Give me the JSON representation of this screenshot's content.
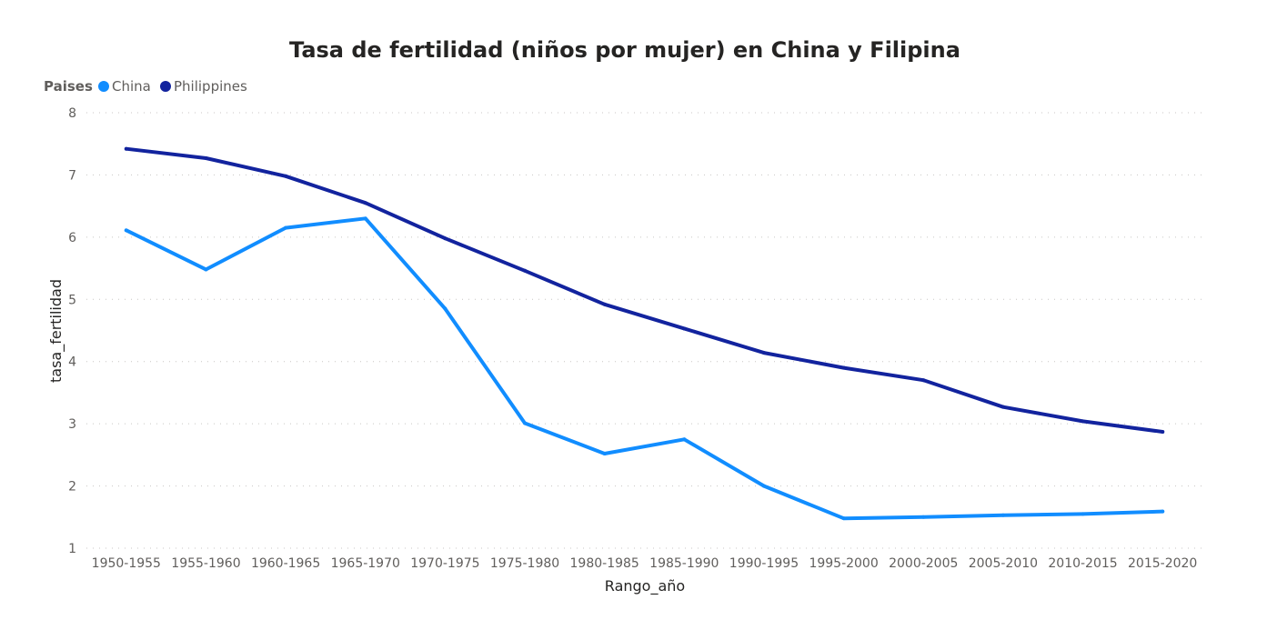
{
  "chart_data": {
    "type": "line",
    "title": "Tasa de fertilidad (niños por mujer) en China y Filipina",
    "legend_title": "Paises",
    "legend_position": "top-left",
    "xlabel": "Rango_año",
    "ylabel": "tasa_fertilidad",
    "ylim": [
      1,
      8
    ],
    "yticks": [
      1,
      2,
      3,
      4,
      5,
      6,
      7,
      8
    ],
    "grid": true,
    "categories": [
      "1950-1955",
      "1955-1960",
      "1960-1965",
      "1965-1970",
      "1970-1975",
      "1975-1980",
      "1980-1985",
      "1985-1990",
      "1990-1995",
      "1995-2000",
      "2000-2005",
      "2005-2010",
      "2010-2015",
      "2015-2020"
    ],
    "series": [
      {
        "name": "China",
        "color": "#118dff",
        "values": [
          6.11,
          5.48,
          6.15,
          6.3,
          4.85,
          3.01,
          2.52,
          2.75,
          2.0,
          1.48,
          1.5,
          1.53,
          1.55,
          1.59
        ]
      },
      {
        "name": "Philippines",
        "color": "#12239e",
        "values": [
          7.42,
          7.27,
          6.98,
          6.55,
          5.98,
          5.46,
          4.92,
          4.53,
          4.14,
          3.9,
          3.7,
          3.27,
          3.04,
          2.87
        ]
      }
    ]
  }
}
